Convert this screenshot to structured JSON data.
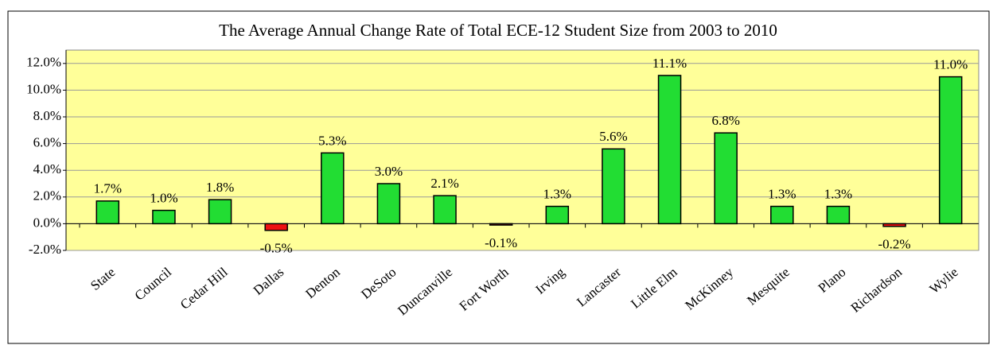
{
  "chart_data": {
    "type": "bar",
    "title": "The Average Annual Change Rate of Total ECE-12 Student Size from 2003 to 2010",
    "categories": [
      "State",
      "Council",
      "Cedar Hill",
      "Dallas",
      "Denton",
      "DeSoto",
      "Duncanville",
      "Fort Worth",
      "Irving",
      "Lancaster",
      "Little Elm",
      "McKinney",
      "Mesquite",
      "Plano",
      "Richardson",
      "Wylie"
    ],
    "values": [
      1.7,
      1.0,
      1.8,
      -0.5,
      5.3,
      3.0,
      2.1,
      -0.1,
      1.3,
      5.6,
      11.1,
      6.8,
      1.3,
      1.3,
      -0.2,
      11.0
    ],
    "value_labels": [
      "1.7%",
      "1.0%",
      "1.8%",
      "-0.5%",
      "5.3%",
      "3.0%",
      "2.1%",
      "-0.1%",
      "1.3%",
      "5.6%",
      "11.1%",
      "6.8%",
      "1.3%",
      "1.3%",
      "-0.2%",
      "11.0%"
    ],
    "colors": [
      "#22dd33",
      "#22dd33",
      "#22dd33",
      "#ee1111",
      "#22dd33",
      "#22dd33",
      "#22dd33",
      "#ee1111",
      "#22dd33",
      "#22dd33",
      "#22dd33",
      "#22dd33",
      "#22dd33",
      "#22dd33",
      "#ee1111",
      "#22dd33"
    ],
    "ylim": [
      -2,
      13
    ],
    "yticks": [
      {
        "value": -2,
        "label": "-2.0%"
      },
      {
        "value": 0,
        "label": "0.0%"
      },
      {
        "value": 2,
        "label": "2.0%"
      },
      {
        "value": 4,
        "label": "4.0%"
      },
      {
        "value": 6,
        "label": "6.0%"
      },
      {
        "value": 8,
        "label": "8.0%"
      },
      {
        "value": 10,
        "label": "10.0%"
      },
      {
        "value": 12,
        "label": "12.0%"
      }
    ],
    "grid": true,
    "plot_background": "#ffff99"
  }
}
